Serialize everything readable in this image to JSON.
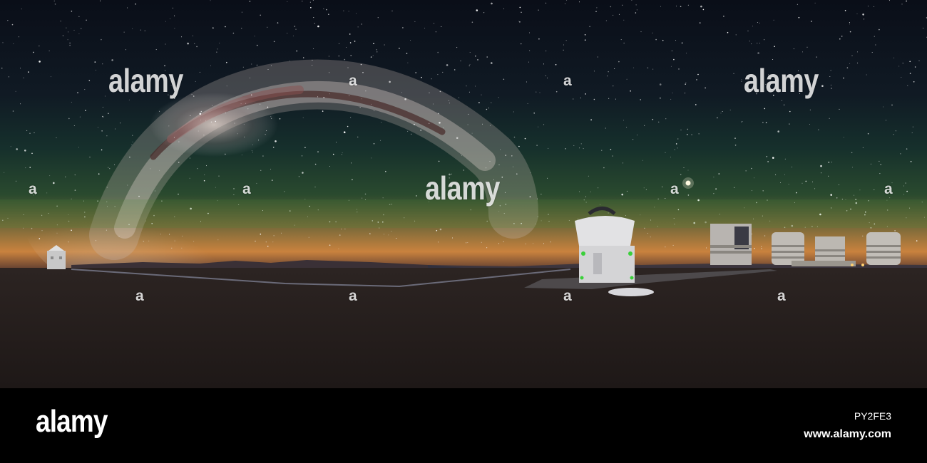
{
  "watermark": {
    "brand_text": "alamy",
    "mark_text": "a"
  },
  "footer": {
    "logo_text": "alamy",
    "image_id": "PY2FE3",
    "url": "www.alamy.com"
  },
  "colors": {
    "footer_background": "#000000",
    "sky_top": "#0a0f1a",
    "horizon_glow": "#c97a3a",
    "ground": "#2a2220"
  }
}
